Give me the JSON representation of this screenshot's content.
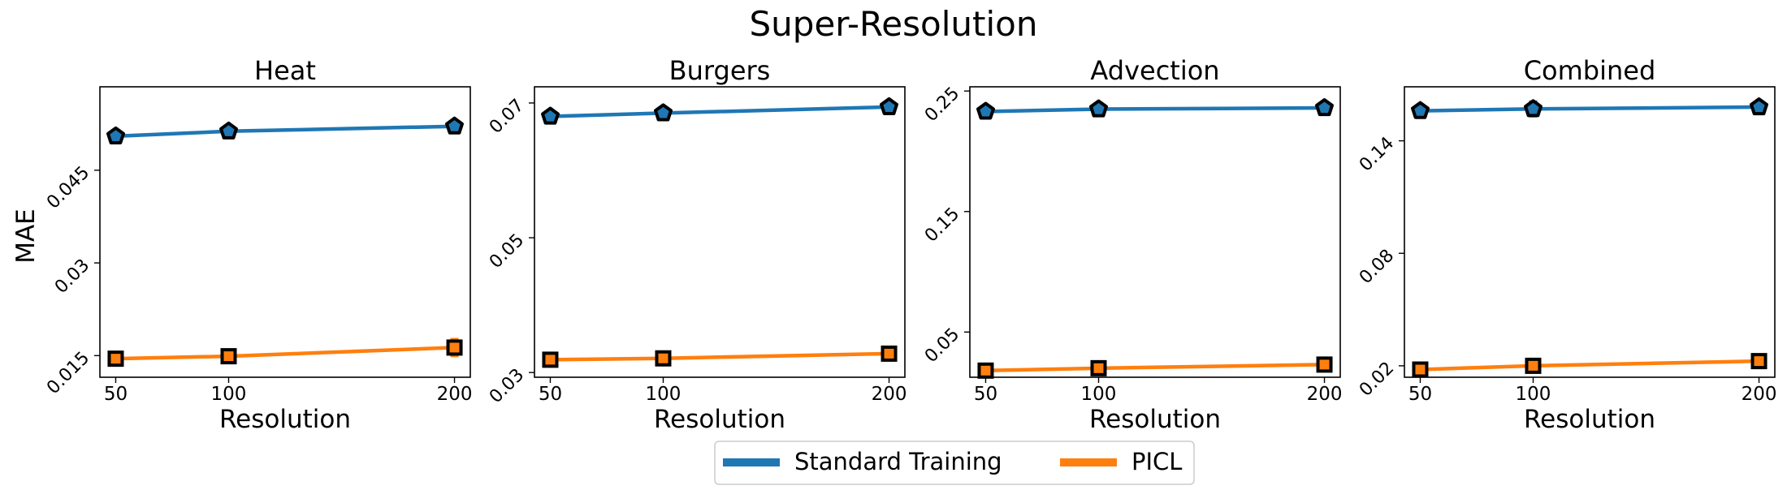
{
  "figure": {
    "suptitle": "Super-Resolution",
    "shared_ylabel": "MAE",
    "legend": [
      "Standard Training",
      "PICL"
    ],
    "legend_position": "bottom-center",
    "colors": {
      "standard": "#1f77b4",
      "picl": "#ff7f0e",
      "marker_edge": "#000000"
    }
  },
  "chart_data": [
    {
      "type": "line",
      "title": "Heat",
      "xlabel": "Resolution",
      "ylabel": "MAE",
      "x": [
        50,
        100,
        200
      ],
      "xticks": [
        "50",
        "100",
        "200"
      ],
      "xlim": [
        43,
        207
      ],
      "ylim": [
        0.0115,
        0.0585
      ],
      "yticks": [
        0.015,
        0.03,
        0.045
      ],
      "ytick_labels": [
        "0.015",
        "0.03",
        "0.045"
      ],
      "grid": false,
      "series": [
        {
          "name": "Standard Training",
          "values": [
            0.0505,
            0.0513,
            0.0521
          ],
          "errors": [
            0.0004,
            0.0004,
            0.0004
          ],
          "marker": "pentagon"
        },
        {
          "name": "PICL",
          "values": [
            0.0145,
            0.0149,
            0.0163
          ],
          "errors": [
            0.0008,
            0.0007,
            0.0014
          ],
          "marker": "square"
        }
      ]
    },
    {
      "type": "line",
      "title": "Burgers",
      "xlabel": "Resolution",
      "ylabel": "",
      "x": [
        50,
        100,
        200
      ],
      "xticks": [
        "50",
        "100",
        "200"
      ],
      "xlim": [
        43,
        207
      ],
      "ylim": [
        0.0293,
        0.0724
      ],
      "yticks": [
        0.03,
        0.05,
        0.07
      ],
      "ytick_labels": [
        "0.03",
        "0.05",
        "0.07"
      ],
      "grid": false,
      "series": [
        {
          "name": "Standard Training",
          "values": [
            0.068,
            0.0685,
            0.0694
          ],
          "errors": [
            0.0004,
            0.0004,
            0.0004
          ],
          "marker": "pentagon"
        },
        {
          "name": "PICL",
          "values": [
            0.0319,
            0.0321,
            0.0328
          ],
          "errors": [
            0.0005,
            0.0005,
            0.0006
          ],
          "marker": "square"
        }
      ]
    },
    {
      "type": "line",
      "title": "Advection",
      "xlabel": "Resolution",
      "ylabel": "",
      "x": [
        50,
        100,
        200
      ],
      "xticks": [
        "50",
        "100",
        "200"
      ],
      "xlim": [
        43,
        207
      ],
      "ylim": [
        0.0125,
        0.2535
      ],
      "yticks": [
        0.05,
        0.15,
        0.25
      ],
      "ytick_labels": [
        "0.05",
        "0.15",
        "0.25"
      ],
      "grid": false,
      "series": [
        {
          "name": "Standard Training",
          "values": [
            0.233,
            0.235,
            0.236
          ],
          "errors": [
            0.002,
            0.002,
            0.002
          ],
          "marker": "pentagon"
        },
        {
          "name": "PICL",
          "values": [
            0.018,
            0.02,
            0.023
          ],
          "errors": [
            0.002,
            0.002,
            0.002
          ],
          "marker": "square"
        }
      ]
    },
    {
      "type": "line",
      "title": "Combined",
      "xlabel": "Resolution",
      "ylabel": "",
      "x": [
        50,
        100,
        200
      ],
      "xticks": [
        "50",
        "100",
        "200"
      ],
      "xlim": [
        43,
        207
      ],
      "ylim": [
        0.0139,
        0.1688
      ],
      "yticks": [
        0.02,
        0.08,
        0.14
      ],
      "ytick_labels": [
        "0.02",
        "0.08",
        "0.14"
      ],
      "grid": false,
      "series": [
        {
          "name": "Standard Training",
          "values": [
            0.156,
            0.157,
            0.158
          ],
          "errors": [
            0.003,
            0.004,
            0.003
          ],
          "marker": "pentagon"
        },
        {
          "name": "PICL",
          "values": [
            0.018,
            0.02,
            0.0225
          ],
          "errors": [
            0.0012,
            0.0012,
            0.0012
          ],
          "marker": "square"
        }
      ]
    }
  ]
}
